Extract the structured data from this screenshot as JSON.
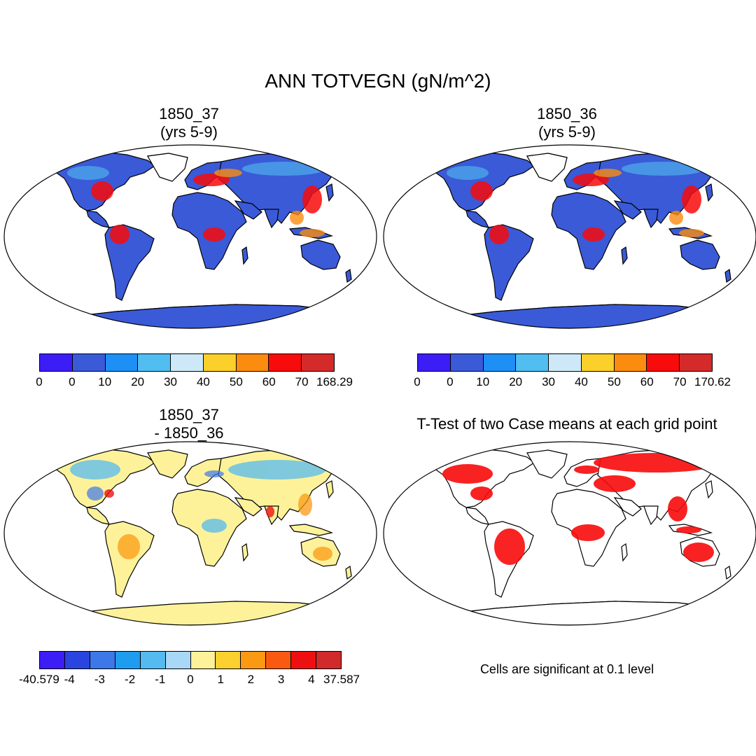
{
  "main_title": "ANN TOTVEGN (gN/m^2)",
  "panels": [
    {
      "title_line1": "1850_37",
      "title_line2": "(yrs 5-9)"
    },
    {
      "title_line1": "1850_36",
      "title_line2": "(yrs 5-9)"
    },
    {
      "title_line1": "1850_37",
      "title_line2": "- 1850_36"
    },
    {
      "title_line1": "T-Test of two Case means at each grid point",
      "title_line2": ""
    }
  ],
  "colorbars": {
    "cb1": {
      "labels": [
        "0",
        "0",
        "10",
        "20",
        "30",
        "40",
        "50",
        "60",
        "70",
        "168.29"
      ],
      "colors": [
        "#3d1df5",
        "#3a5ad8",
        "#1e90f5",
        "#52bdf0",
        "#cde9f8",
        "#fbd02b",
        "#fb8c0f",
        "#f80b0b",
        "#d42a2a"
      ]
    },
    "cb2": {
      "labels": [
        "0",
        "0",
        "10",
        "20",
        "30",
        "40",
        "50",
        "60",
        "70",
        "170.62"
      ],
      "colors": [
        "#3d1df5",
        "#3a5ad8",
        "#1e90f5",
        "#52bdf0",
        "#cde9f8",
        "#fbd02b",
        "#fb8c0f",
        "#f80b0b",
        "#d42a2a"
      ]
    },
    "cb3": {
      "labels": [
        "-40.579",
        "-4",
        "-3",
        "-2",
        "-1",
        "0",
        "1",
        "2",
        "3",
        "4",
        "37.587"
      ],
      "colors": [
        "#3d1df5",
        "#2a44e0",
        "#3d78e8",
        "#1e9cf0",
        "#55baf0",
        "#a8d8f5",
        "#fdf29a",
        "#fcd02e",
        "#fb9a12",
        "#fa5a10",
        "#ee1010",
        "#d02a2a"
      ]
    }
  },
  "note": "Cells are significant at 0.1 level"
}
